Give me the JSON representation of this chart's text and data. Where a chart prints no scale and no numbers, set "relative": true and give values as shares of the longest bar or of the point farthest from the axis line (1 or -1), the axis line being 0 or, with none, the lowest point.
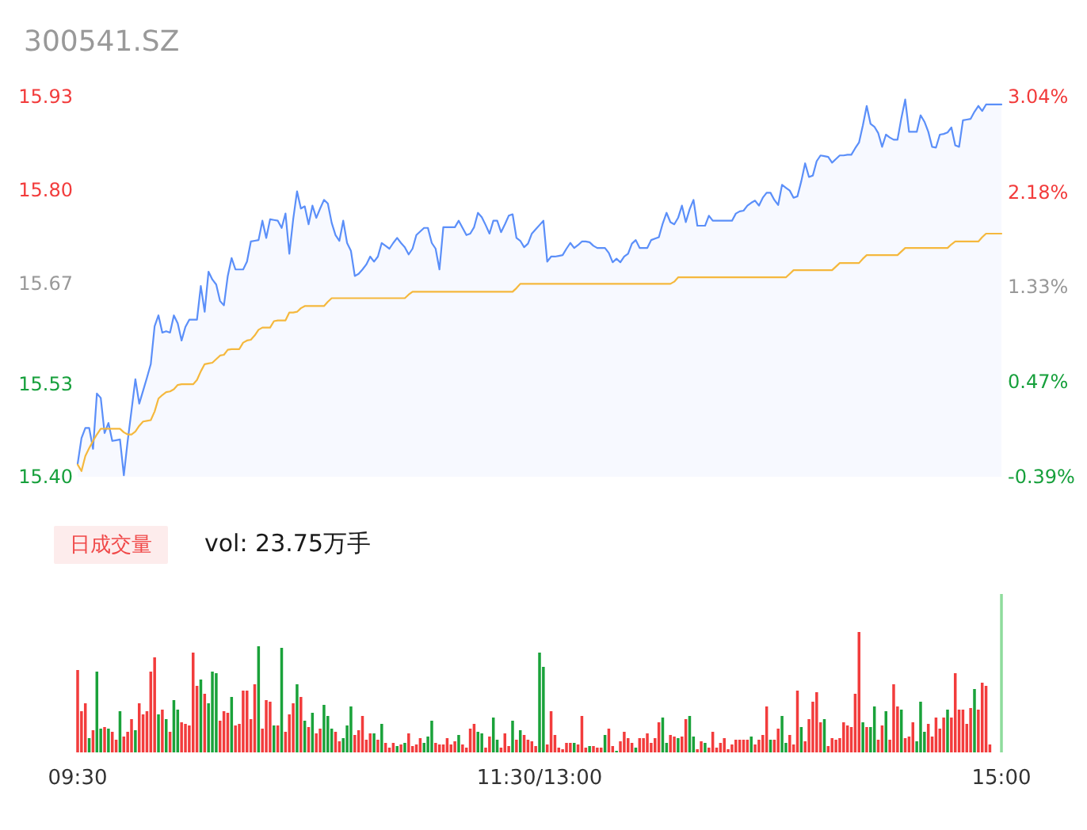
{
  "chart_data": [
    {
      "type": "area",
      "title": "300541.SZ",
      "ylim": [
        15.4,
        15.93
      ],
      "yticks": [
        {
          "value": 15.4,
          "label": "15.40"
        },
        {
          "value": 15.53,
          "label": "15.53"
        },
        {
          "value": 15.67,
          "label": "15.67"
        },
        {
          "value": 15.8,
          "label": "15.80"
        },
        {
          "value": 15.93,
          "label": "15.93"
        }
      ],
      "y2lim": [
        -0.39,
        3.04
      ],
      "y2ticks": [
        {
          "value": -0.39,
          "label": "-0.39%"
        },
        {
          "value": 0.47,
          "label": "0.47%"
        },
        {
          "value": 1.33,
          "label": "1.33%"
        },
        {
          "value": 2.18,
          "label": "2.18%"
        },
        {
          "value": 3.04,
          "label": "3.04%"
        }
      ],
      "tick_labels": "y",
      "categories": [
        null,
        null,
        null,
        null,
        null,
        null,
        null,
        null,
        null,
        null,
        null,
        null,
        null,
        null,
        null,
        null,
        null,
        null,
        null,
        null,
        null,
        null,
        null,
        null,
        null,
        null,
        null,
        null,
        null,
        null,
        null,
        null,
        null,
        null,
        null,
        null,
        null,
        null,
        null,
        null,
        null,
        null,
        null,
        null,
        null,
        null,
        null,
        null,
        null,
        null,
        null,
        null,
        null,
        null,
        null,
        null,
        null,
        null,
        null,
        null,
        null,
        null,
        null,
        null,
        null,
        null,
        null,
        null,
        null,
        null,
        null,
        null,
        null,
        null,
        null,
        null,
        null,
        null,
        null,
        null,
        null,
        null,
        null,
        null,
        null,
        null,
        null,
        null,
        null,
        null,
        null,
        null,
        null,
        null,
        null,
        null,
        null,
        null,
        null,
        null,
        null,
        null,
        null,
        null,
        null,
        null,
        null,
        null,
        null,
        null,
        null,
        null,
        null,
        null,
        null,
        null,
        null,
        null,
        null,
        null,
        null,
        null,
        null,
        null,
        null,
        null,
        null,
        null,
        null,
        null,
        null,
        null,
        null,
        null,
        null,
        null,
        null,
        null,
        null,
        null,
        null,
        null,
        null,
        null,
        null,
        null,
        null,
        null,
        null,
        null,
        null,
        null,
        null,
        null,
        null,
        null,
        null,
        null,
        null,
        null,
        null,
        null,
        null,
        null,
        null,
        null,
        null,
        null,
        null,
        null,
        null,
        null,
        null,
        null,
        null,
        null,
        null,
        null,
        null,
        null,
        null,
        null,
        null,
        null,
        null,
        null,
        null,
        null,
        null,
        null,
        null,
        null,
        null,
        null,
        null,
        null,
        null,
        null,
        null,
        null,
        null,
        null,
        null,
        null,
        null,
        null,
        null,
        null,
        null,
        null,
        null,
        null,
        null,
        null,
        null,
        null,
        null,
        null,
        null,
        null,
        null,
        null,
        null,
        null,
        null,
        null,
        null,
        null,
        null,
        null,
        null,
        null,
        null,
        null,
        null,
        null,
        null,
        null,
        null,
        null,
        null
      ],
      "series": [
        {
          "color": "#5b8ff9",
          "values": [
            15.418,
            15.454,
            15.468,
            15.468,
            15.439,
            15.516,
            15.51,
            15.461,
            15.475,
            15.45,
            15.451,
            15.452,
            15.402,
            15.45,
            15.493,
            15.536,
            15.502,
            15.52,
            15.538,
            15.557,
            15.61,
            15.625,
            15.601,
            15.603,
            15.601,
            15.625,
            15.614,
            15.59,
            15.609,
            15.619,
            15.619,
            15.619,
            15.666,
            15.63,
            15.686,
            15.675,
            15.668,
            15.645,
            15.639,
            15.68,
            15.705,
            15.689,
            15.689,
            15.689,
            15.7,
            15.728,
            15.729,
            15.73,
            15.757,
            15.733,
            15.759,
            15.758,
            15.757,
            15.747,
            15.767,
            15.711,
            15.759,
            15.798,
            15.774,
            15.777,
            15.752,
            15.778,
            15.761,
            15.774,
            15.786,
            15.781,
            15.754,
            15.737,
            15.729,
            15.757,
            15.726,
            15.715,
            15.68,
            15.683,
            15.689,
            15.696,
            15.707,
            15.7,
            15.707,
            15.726,
            15.722,
            15.718,
            15.726,
            15.733,
            15.726,
            15.72,
            15.71,
            15.718,
            15.737,
            15.742,
            15.747,
            15.747,
            15.726,
            15.718,
            15.689,
            15.748,
            15.748,
            15.748,
            15.748,
            15.757,
            15.747,
            15.737,
            15.739,
            15.748,
            15.768,
            15.762,
            15.751,
            15.739,
            15.757,
            15.757,
            15.741,
            15.752,
            15.764,
            15.766,
            15.733,
            15.729,
            15.72,
            15.725,
            15.739,
            15.745,
            15.751,
            15.757,
            15.7,
            15.707,
            15.707,
            15.708,
            15.709,
            15.718,
            15.726,
            15.719,
            15.723,
            15.728,
            15.728,
            15.727,
            15.722,
            15.719,
            15.719,
            15.719,
            15.712,
            15.699,
            15.704,
            15.699,
            15.707,
            15.711,
            15.725,
            15.73,
            15.719,
            15.719,
            15.719,
            15.73,
            15.732,
            15.734,
            15.753,
            15.768,
            15.755,
            15.752,
            15.761,
            15.778,
            15.755,
            15.773,
            15.786,
            15.75,
            15.75,
            15.75,
            15.764,
            15.757,
            15.757,
            15.757,
            15.757,
            15.757,
            15.757,
            15.767,
            15.77,
            15.771,
            15.778,
            15.782,
            15.785,
            15.778,
            15.789,
            15.796,
            15.796,
            15.786,
            15.779,
            15.807,
            15.803,
            15.799,
            15.789,
            15.791,
            15.812,
            15.837,
            15.818,
            15.82,
            15.84,
            15.848,
            15.847,
            15.846,
            15.838,
            15.843,
            15.848,
            15.848,
            15.849,
            15.849,
            15.858,
            15.866,
            15.89,
            15.917,
            15.892,
            15.888,
            15.879,
            15.86,
            15.877,
            15.873,
            15.87,
            15.87,
            15.9,
            15.926,
            15.881,
            15.881,
            15.881,
            15.904,
            15.895,
            15.881,
            15.86,
            15.859,
            15.877,
            15.878,
            15.88,
            15.887,
            15.862,
            15.86,
            15.897,
            15.898,
            15.899,
            15.909,
            15.917,
            15.91,
            15.919,
            15.919,
            15.919,
            15.919,
            15.919
          ]
        },
        {
          "type": "line",
          "color": "#f5b83d",
          "values": [
            15.417,
            15.408,
            15.429,
            15.44,
            15.45,
            15.459,
            15.467,
            15.467,
            15.467,
            15.467,
            15.467,
            15.467,
            15.462,
            15.459,
            15.459,
            15.463,
            15.471,
            15.477,
            15.478,
            15.479,
            15.491,
            15.509,
            15.514,
            15.518,
            15.519,
            15.522,
            15.528,
            15.529,
            15.529,
            15.529,
            15.529,
            15.535,
            15.547,
            15.557,
            15.558,
            15.559,
            15.564,
            15.569,
            15.57,
            15.577,
            15.578,
            15.578,
            15.578,
            15.587,
            15.59,
            15.591,
            15.597,
            15.605,
            15.608,
            15.608,
            15.608,
            15.617,
            15.618,
            15.618,
            15.618,
            15.629,
            15.629,
            15.63,
            15.635,
            15.638,
            15.638,
            15.638,
            15.638,
            15.638,
            15.638,
            15.644,
            15.649,
            15.649,
            15.649,
            15.649,
            15.649,
            15.649,
            15.649,
            15.649,
            15.649,
            15.649,
            15.649,
            15.649,
            15.649,
            15.649,
            15.649,
            15.649,
            15.649,
            15.649,
            15.649,
            15.649,
            15.654,
            15.658,
            15.658,
            15.658,
            15.658,
            15.658,
            15.658,
            15.658,
            15.658,
            15.658,
            15.658,
            15.658,
            15.658,
            15.658,
            15.658,
            15.658,
            15.658,
            15.658,
            15.658,
            15.658,
            15.658,
            15.658,
            15.658,
            15.658,
            15.658,
            15.658,
            15.658,
            15.658,
            15.663,
            15.669,
            15.669,
            15.669,
            15.669,
            15.669,
            15.669,
            15.669,
            15.669,
            15.669,
            15.669,
            15.669,
            15.669,
            15.669,
            15.669,
            15.669,
            15.669,
            15.669,
            15.669,
            15.669,
            15.669,
            15.669,
            15.669,
            15.669,
            15.669,
            15.669,
            15.669,
            15.669,
            15.669,
            15.669,
            15.669,
            15.669,
            15.669,
            15.669,
            15.669,
            15.669,
            15.669,
            15.669,
            15.669,
            15.669,
            15.669,
            15.672,
            15.678,
            15.678,
            15.678,
            15.678,
            15.678,
            15.678,
            15.678,
            15.678,
            15.678,
            15.678,
            15.678,
            15.678,
            15.678,
            15.678,
            15.678,
            15.678,
            15.678,
            15.678,
            15.678,
            15.678,
            15.678,
            15.678,
            15.678,
            15.678,
            15.678,
            15.678,
            15.678,
            15.678,
            15.678,
            15.683,
            15.688,
            15.688,
            15.688,
            15.688,
            15.688,
            15.688,
            15.688,
            15.688,
            15.688,
            15.688,
            15.688,
            15.693,
            15.698,
            15.698,
            15.698,
            15.698,
            15.698,
            15.698,
            15.704,
            15.709,
            15.709,
            15.709,
            15.709,
            15.709,
            15.709,
            15.709,
            15.709,
            15.709,
            15.714,
            15.719,
            15.719,
            15.719,
            15.719,
            15.719,
            15.719,
            15.719,
            15.719,
            15.719,
            15.719,
            15.719,
            15.719,
            15.724,
            15.728,
            15.728,
            15.728,
            15.728,
            15.728,
            15.728,
            15.728,
            15.734,
            15.739,
            15.739,
            15.739,
            15.739,
            15.739
          ]
        }
      ]
    },
    {
      "type": "bar",
      "title": "日成交量",
      "subtitle": "vol: 23.75万手",
      "relative": true,
      "categories": [
        "09:30",
        null,
        null,
        null,
        null,
        null,
        null,
        null,
        null,
        null,
        null,
        null,
        null,
        null,
        null,
        null,
        null,
        null,
        null,
        null,
        null,
        null,
        null,
        null,
        null,
        null,
        null,
        null,
        null,
        null,
        null,
        null,
        null,
        null,
        null,
        null,
        null,
        null,
        null,
        null,
        null,
        null,
        null,
        null,
        null,
        null,
        null,
        null,
        null,
        null,
        null,
        null,
        null,
        null,
        null,
        null,
        null,
        null,
        null,
        null,
        null,
        null,
        null,
        null,
        null,
        null,
        null,
        null,
        null,
        null,
        null,
        null,
        null,
        null,
        null,
        null,
        null,
        null,
        null,
        null,
        null,
        null,
        null,
        null,
        null,
        null,
        null,
        null,
        null,
        null,
        null,
        null,
        null,
        null,
        null,
        null,
        null,
        null,
        null,
        null,
        null,
        null,
        null,
        null,
        null,
        null,
        null,
        null,
        null,
        null,
        null,
        null,
        null,
        null,
        null,
        null,
        null,
        null,
        null,
        null,
        "11:30/13:00",
        null,
        null,
        null,
        null,
        null,
        null,
        null,
        null,
        null,
        null,
        null,
        null,
        null,
        null,
        null,
        null,
        null,
        null,
        null,
        null,
        null,
        null,
        null,
        null,
        null,
        null,
        null,
        null,
        null,
        null,
        null,
        null,
        null,
        null,
        null,
        null,
        null,
        null,
        null,
        null,
        null,
        null,
        null,
        null,
        null,
        null,
        null,
        null,
        null,
        null,
        null,
        null,
        null,
        null,
        null,
        null,
        null,
        null,
        null,
        null,
        null,
        null,
        null,
        null,
        null,
        null,
        null,
        null,
        null,
        null,
        null,
        null,
        null,
        null,
        null,
        null,
        null,
        null,
        null,
        null,
        null,
        null,
        null,
        null,
        null,
        null,
        null,
        null,
        null,
        null,
        null,
        null,
        null,
        null,
        null,
        null,
        null,
        null,
        null,
        null,
        null,
        null,
        null,
        null,
        null,
        null,
        null,
        null,
        null,
        null,
        null,
        null,
        null,
        null,
        null,
        null,
        null,
        null,
        null,
        "15:00"
      ],
      "values": [
        0.52,
        0.26,
        0.31,
        0.09,
        0.14,
        0.51,
        0.15,
        0.16,
        0.15,
        0.13,
        0.08,
        0.26,
        0.1,
        0.13,
        0.21,
        0.14,
        0.31,
        0.24,
        0.26,
        0.51,
        0.6,
        0.24,
        0.27,
        0.21,
        0.13,
        0.33,
        0.27,
        0.19,
        0.18,
        0.17,
        0.63,
        0.42,
        0.46,
        0.37,
        0.31,
        0.51,
        0.5,
        0.2,
        0.26,
        0.25,
        0.35,
        0.17,
        0.18,
        0.39,
        0.39,
        0.21,
        0.43,
        0.67,
        0.15,
        0.33,
        0.32,
        0.17,
        0.17,
        0.66,
        0.13,
        0.24,
        0.31,
        0.43,
        0.35,
        0.2,
        0.16,
        0.25,
        0.12,
        0.15,
        0.3,
        0.23,
        0.15,
        0.13,
        0.07,
        0.09,
        0.17,
        0.29,
        0.11,
        0.14,
        0.23,
        0.08,
        0.12,
        0.12,
        0.08,
        0.18,
        0.06,
        0.03,
        0.06,
        0.04,
        0.05,
        0.06,
        0.12,
        0.04,
        0.05,
        0.09,
        0.06,
        0.1,
        0.2,
        0.06,
        0.05,
        0.05,
        0.09,
        0.05,
        0.07,
        0.11,
        0.05,
        0.03,
        0.15,
        0.18,
        0.13,
        0.12,
        0.03,
        0.1,
        0.22,
        0.08,
        0.03,
        0.12,
        0.04,
        0.2,
        0.08,
        0.14,
        0.11,
        0.08,
        0.07,
        0.04,
        0.63,
        0.54,
        0.05,
        0.26,
        0.11,
        0.03,
        0.02,
        0.06,
        0.06,
        0.06,
        0.05,
        0.23,
        0.03,
        0.04,
        0.04,
        0.03,
        0.03,
        0.11,
        0.15,
        0.04,
        0.01,
        0.07,
        0.13,
        0.09,
        0.06,
        0.03,
        0.09,
        0.09,
        0.12,
        0.06,
        0.09,
        0.19,
        0.22,
        0.06,
        0.11,
        0.1,
        0.09,
        0.1,
        0.21,
        0.23,
        0.1,
        0.02,
        0.07,
        0.06,
        0.03,
        0.13,
        0.03,
        0.06,
        0.09,
        0.02,
        0.05,
        0.08,
        0.08,
        0.08,
        0.08,
        0.1,
        0.05,
        0.08,
        0.11,
        0.29,
        0.08,
        0.08,
        0.15,
        0.23,
        0.06,
        0.11,
        0.05,
        0.39,
        0.16,
        0.07,
        0.21,
        0.32,
        0.38,
        0.19,
        0.21,
        0.04,
        0.09,
        0.08,
        0.09,
        0.19,
        0.17,
        0.16,
        0.37,
        0.76,
        0.19,
        0.16,
        0.16,
        0.29,
        0.08,
        0.17,
        0.26,
        0.08,
        0.43,
        0.29,
        0.27,
        0.09,
        0.1,
        0.19,
        0.07,
        0.32,
        0.13,
        0.18,
        0.1,
        0.22,
        0.15,
        0.22,
        0.27,
        0.22,
        0.5,
        0.27,
        0.27,
        0.18,
        0.28,
        0.4,
        0.27,
        0.44,
        0.42,
        0.05,
        null,
        null,
        1.0
      ],
      "colors": [
        "#f23c3c",
        "#f23c3c",
        "#f23c3c",
        "#1aa23a",
        "#f23c3c",
        "#1aa23a",
        "#1aa23a",
        "#f23c3c",
        "#1aa23a",
        "#f23c3c",
        "#f23c3c",
        "#1aa23a",
        "#f23c3c",
        "#f23c3c",
        "#f23c3c",
        "#1aa23a",
        "#f23c3c",
        "#f23c3c",
        "#f23c3c",
        "#f23c3c",
        "#f23c3c",
        "#1aa23a",
        "#f23c3c",
        "#1aa23a",
        "#f23c3c",
        "#1aa23a",
        "#1aa23a",
        "#f23c3c",
        "#f23c3c",
        "#f23c3c",
        "#f23c3c",
        "#f23c3c",
        "#1aa23a",
        "#f23c3c",
        "#1aa23a",
        "#1aa23a",
        "#1aa23a",
        "#f23c3c",
        "#f23c3c",
        "#f23c3c",
        "#1aa23a",
        "#f23c3c",
        "#f23c3c",
        "#f23c3c",
        "#f23c3c",
        "#f23c3c",
        "#f23c3c",
        "#1aa23a",
        "#f23c3c",
        "#f23c3c",
        "#f23c3c",
        "#1aa23a",
        "#f23c3c",
        "#1aa23a",
        "#f23c3c",
        "#f23c3c",
        "#f23c3c",
        "#1aa23a",
        "#f23c3c",
        "#1aa23a",
        "#f23c3c",
        "#1aa23a",
        "#f23c3c",
        "#f23c3c",
        "#1aa23a",
        "#1aa23a",
        "#1aa23a",
        "#f23c3c",
        "#f23c3c",
        "#1aa23a",
        "#1aa23a",
        "#1aa23a",
        "#f23c3c",
        "#f23c3c",
        "#f23c3c",
        "#f23c3c",
        "#f23c3c",
        "#1aa23a",
        "#f23c3c",
        "#1aa23a",
        "#f23c3c",
        "#f23c3c",
        "#f23c3c",
        "#1aa23a",
        "#f23c3c",
        "#1aa23a",
        "#f23c3c",
        "#f23c3c",
        "#f23c3c",
        "#f23c3c",
        "#1aa23a",
        "#1aa23a",
        "#1aa23a",
        "#f23c3c",
        "#f23c3c",
        "#f23c3c",
        "#f23c3c",
        "#f23c3c",
        "#f23c3c",
        "#1aa23a",
        "#f23c3c",
        "#f23c3c",
        "#f23c3c",
        "#f23c3c",
        "#1aa23a",
        "#1aa23a",
        "#f23c3c",
        "#f23c3c",
        "#1aa23a",
        "#1aa23a",
        "#f23c3c",
        "#f23c3c",
        "#f23c3c",
        "#1aa23a",
        "#f23c3c",
        "#1aa23a",
        "#f23c3c",
        "#f23c3c",
        "#f23c3c",
        "#f23c3c",
        "#1aa23a",
        "#1aa23a",
        "#f23c3c",
        "#f23c3c",
        "#f23c3c",
        "#f23c3c",
        "#f23c3c",
        "#f23c3c",
        "#f23c3c",
        "#1aa23a",
        "#f23c3c",
        "#f23c3c",
        "#f23c3c",
        "#1aa23a",
        "#f23c3c",
        "#f23c3c",
        "#f23c3c",
        "#1aa23a",
        "#f23c3c",
        "#f23c3c",
        "#1aa23a",
        "#f23c3c",
        "#f23c3c",
        "#f23c3c",
        "#f23c3c",
        "#1aa23a",
        "#f23c3c",
        "#f23c3c",
        "#f23c3c",
        "#f23c3c",
        "#f23c3c",
        "#f23c3c",
        "#1aa23a",
        "#1aa23a",
        "#f23c3c",
        "#f23c3c",
        "#1aa23a",
        "#f23c3c",
        "#f23c3c",
        "#1aa23a",
        "#1aa23a",
        "#f23c3c",
        "#f23c3c",
        "#1aa23a",
        "#f23c3c",
        "#f23c3c",
        "#f23c3c",
        "#f23c3c",
        "#f23c3c",
        "#f23c3c",
        "#f23c3c",
        "#f23c3c",
        "#f23c3c",
        "#f23c3c",
        "#f23c3c",
        "#1aa23a",
        "#f23c3c",
        "#f23c3c",
        "#f23c3c",
        "#f23c3c",
        "#1aa23a",
        "#f23c3c",
        "#f23c3c",
        "#1aa23a",
        "#1aa23a",
        "#f23c3c",
        "#f23c3c",
        "#f23c3c",
        "#1aa23a",
        "#f23c3c",
        "#f23c3c",
        "#f23c3c",
        "#f23c3c",
        "#f23c3c",
        "#1aa23a",
        "#f23c3c",
        "#f23c3c",
        "#f23c3c",
        "#f23c3c",
        "#f23c3c",
        "#f23c3c",
        "#f23c3c",
        "#f23c3c",
        "#f23c3c",
        "#1aa23a",
        "#f23c3c",
        "#1aa23a",
        "#1aa23a",
        "#f23c3c",
        "#f23c3c",
        "#1aa23a",
        "#f23c3c",
        "#f23c3c",
        "#f23c3c",
        "#1aa23a",
        "#f23c3c",
        "#f23c3c",
        "#f23c3c",
        "#1aa23a",
        "#1aa23a",
        "#1aa23a",
        "#f23c3c",
        "#f23c3c",
        "#f23c3c",
        "#f23c3c",
        "#f23c3c",
        "#1aa23a",
        "#f23c3c",
        "#f23c3c",
        "#f23c3c",
        "#f23c3c",
        "#f23c3c",
        "#f23c3c",
        "#1aa23a",
        "#f23c3c",
        "#f23c3c",
        "#f23c3c",
        "#f23c3c",
        null,
        null,
        "#8fdc9c"
      ]
    }
  ]
}
